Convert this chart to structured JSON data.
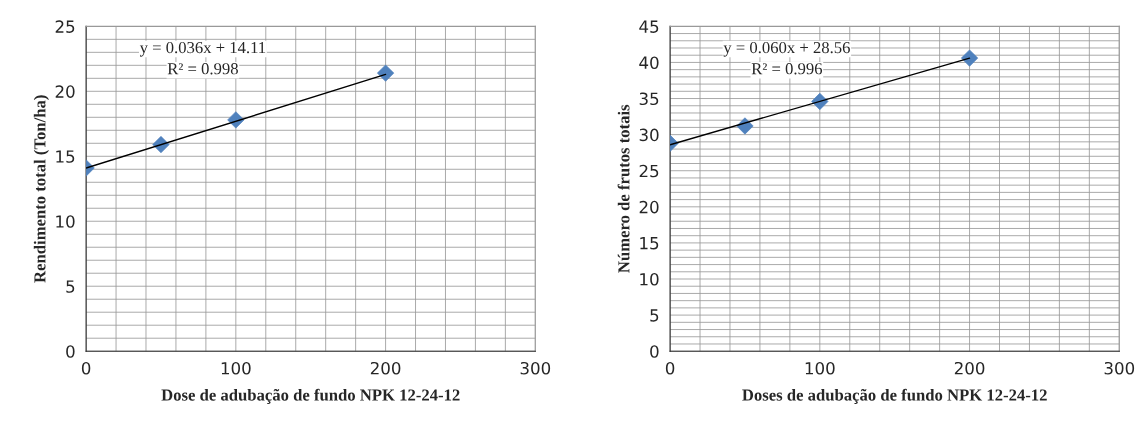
{
  "chart_data": [
    {
      "type": "scatter",
      "xlabel": "Dose de adubação de fundo NPK 12-24-12",
      "ylabel": "Rendimento total (Ton/ha)",
      "xlim": [
        0,
        300
      ],
      "xticks": [
        0,
        100,
        200,
        300
      ],
      "ylim": [
        0,
        25
      ],
      "yticks": [
        0,
        5,
        10,
        15,
        20,
        25
      ],
      "grid": true,
      "annotations": [
        "y = 0.036x + 14.11",
        "R² = 0.998"
      ],
      "series": [
        {
          "color": "#4f81bd",
          "marker": "diamond",
          "x": [
            0,
            50,
            100,
            200
          ],
          "values": [
            14.1,
            15.9,
            17.8,
            21.4
          ]
        },
        {
          "type": "line",
          "marker": "none",
          "color": "#000000",
          "x": [
            0,
            200
          ],
          "values": [
            14.1,
            21.3
          ]
        }
      ]
    },
    {
      "type": "scatter",
      "xlabel": "Doses de adubação de fundo NPK 12-24-12",
      "ylabel": "Número de frutos totais",
      "xlim": [
        0,
        300
      ],
      "xticks": [
        0,
        100,
        200,
        300
      ],
      "ylim": [
        0,
        45
      ],
      "yticks": [
        0,
        5,
        10,
        15,
        20,
        25,
        30,
        35,
        40,
        45
      ],
      "grid": true,
      "annotations": [
        "y = 0.060x + 28.56",
        "R² = 0.996"
      ],
      "series": [
        {
          "color": "#4f81bd",
          "marker": "diamond",
          "x": [
            0,
            50,
            100,
            200
          ],
          "values": [
            28.8,
            31.2,
            34.6,
            40.6
          ]
        },
        {
          "type": "line",
          "marker": "none",
          "color": "#000000",
          "x": [
            0,
            200
          ],
          "values": [
            28.6,
            40.6
          ]
        }
      ]
    }
  ]
}
